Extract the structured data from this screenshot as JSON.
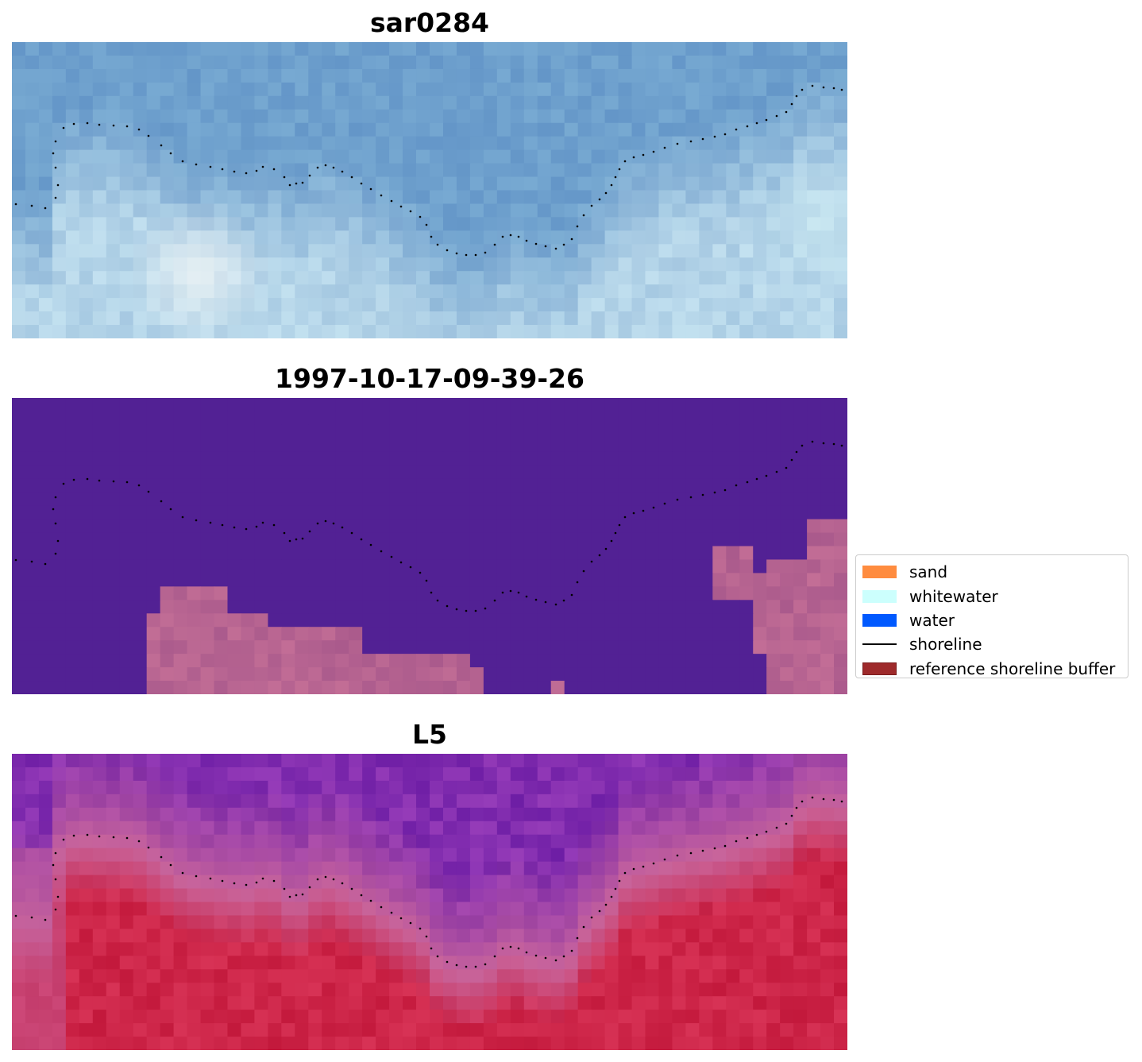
{
  "panels": [
    {
      "title": "sar0284",
      "style": "rgb"
    },
    {
      "title": "1997-10-17-09-39-26",
      "style": "classified"
    },
    {
      "title": "L5",
      "style": "index"
    }
  ],
  "legend": [
    {
      "label": "sand",
      "color": "#ff8c3f",
      "kind": "patch"
    },
    {
      "label": "whitewater",
      "color": "#ccfffd",
      "kind": "patch"
    },
    {
      "label": "water",
      "color": "#0059ff",
      "kind": "patch"
    },
    {
      "label": "shoreline",
      "color": "#000000",
      "kind": "line"
    },
    {
      "label": "reference shoreline buffer",
      "color": "#9e2a2b",
      "kind": "patch",
      "edge": "#7a1d1e"
    }
  ],
  "colors": {
    "classified_background": "#522194",
    "classified_buffer": "#b45f91",
    "shoreline": "#000000"
  }
}
